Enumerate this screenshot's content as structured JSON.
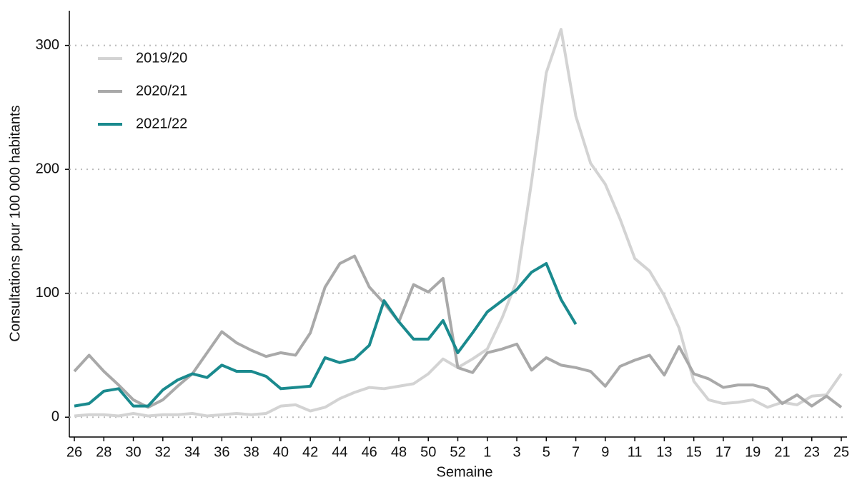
{
  "chart_data": {
    "type": "line",
    "x_label": "Semaine",
    "y_label": "Consultations pour 100 000 habitants",
    "categories": [
      "26",
      null,
      "28",
      null,
      "30",
      null,
      "32",
      null,
      "34",
      null,
      "36",
      null,
      "38",
      null,
      "40",
      null,
      "42",
      null,
      "44",
      null,
      "46",
      null,
      "48",
      null,
      "50",
      null,
      "52",
      null,
      "1",
      null,
      "3",
      null,
      "5",
      null,
      "7",
      null,
      "9",
      null,
      "11",
      null,
      "13",
      null,
      "15",
      null,
      "17",
      null,
      "19",
      null,
      "21",
      null,
      "23",
      null,
      "25"
    ],
    "series": [
      {
        "name": "2019/20",
        "color": "#d3d3d3",
        "values": [
          1,
          2,
          2,
          1,
          3,
          1,
          2,
          2,
          3,
          1,
          2,
          3,
          2,
          3,
          9,
          10,
          5,
          8,
          15,
          20,
          24,
          23,
          25,
          27,
          35,
          47,
          40,
          47,
          55,
          80,
          110,
          190,
          278,
          313,
          243,
          205,
          188,
          160,
          128,
          118,
          98,
          72,
          29,
          14,
          11,
          12,
          14,
          8,
          12,
          10,
          17,
          18,
          35
        ]
      },
      {
        "name": "2020/21",
        "color": "#a9a9a9",
        "values": [
          37,
          50,
          37,
          26,
          14,
          8,
          14,
          25,
          35,
          52,
          69,
          60,
          54,
          49,
          52,
          50,
          68,
          105,
          124,
          130,
          105,
          92,
          77,
          107,
          101,
          112,
          40,
          36,
          52,
          55,
          59,
          38,
          48,
          42,
          40,
          37,
          25,
          41,
          46,
          50,
          34,
          57,
          35,
          31,
          24,
          26,
          26,
          23,
          11,
          18,
          9,
          17,
          8
        ]
      },
      {
        "name": "2021/22",
        "color": "#1a8a8e",
        "values": [
          9,
          11,
          21,
          23,
          9,
          9,
          22,
          30,
          35,
          32,
          42,
          37,
          37,
          33,
          23,
          24,
          25,
          48,
          44,
          47,
          58,
          94,
          77,
          63,
          63,
          78,
          52,
          68,
          85,
          94,
          103,
          117,
          124,
          95,
          75,
          null,
          null,
          null,
          null,
          null,
          null,
          null,
          null,
          null,
          null,
          null,
          null,
          null,
          null,
          null,
          null,
          null,
          null
        ]
      }
    ],
    "ylim": [
      -16,
      328
    ],
    "yticks": [
      0,
      100,
      200,
      300
    ],
    "grid": true,
    "legend": "top-left"
  }
}
